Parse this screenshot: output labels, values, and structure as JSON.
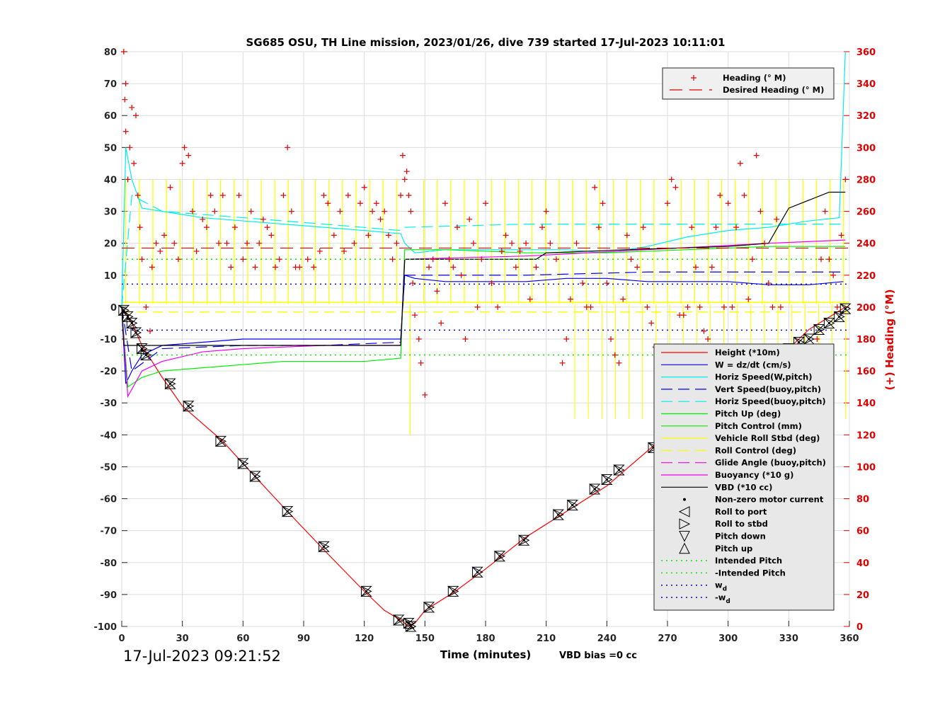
{
  "chart_data": {
    "type": "line",
    "title": "SG685 OSU, TH Line mission, 2023/01/26, dive 739 started 17-Jul-2023 10:11:01",
    "xlabel": "Time (minutes)",
    "ylabel_right": "(+) Heading (°M)",
    "xlim": [
      0,
      360
    ],
    "ylim": [
      -100,
      80
    ],
    "ylim_right": [
      0,
      360
    ],
    "x_ticks": [
      "0",
      "30",
      "60",
      "90",
      "120",
      "150",
      "180",
      "210",
      "240",
      "270",
      "300",
      "330",
      "360"
    ],
    "y_ticks": [
      "80",
      "70",
      "60",
      "50",
      "40",
      "30",
      "20",
      "10",
      "0",
      "-10",
      "-20",
      "-30",
      "-40",
      "-50",
      "-60",
      "-70",
      "-80",
      "-90",
      "-100"
    ],
    "y2_ticks": [
      "360",
      "340",
      "320",
      "300",
      "280",
      "260",
      "240",
      "220",
      "200",
      "180",
      "160",
      "140",
      "120",
      "100",
      "80",
      "60",
      "40",
      "20",
      "0"
    ],
    "grid": true,
    "timestamp": "17-Jul-2023 09:21:52",
    "vbd_bias": "VBD bias =0 cc",
    "legend_top": [
      {
        "label": "Heading (° M)",
        "color": "#e00000",
        "style": "plus"
      },
      {
        "label": "Desired Heading (° M)",
        "color": "#e00000",
        "style": "dash"
      }
    ],
    "legend_main": [
      {
        "label": "Height (*10m)",
        "color": "#ff0000",
        "style": "solid"
      },
      {
        "label": "W = dz/dt (cm/s)",
        "color": "#0000ee",
        "style": "solid"
      },
      {
        "label": "Horiz Speed(W,pitch)",
        "color": "#00eeee",
        "style": "solid"
      },
      {
        "label": "Vert Speed(buoy,pitch)",
        "color": "#0000ee",
        "style": "dash"
      },
      {
        "label": "Horiz Speed(buoy,pitch)",
        "color": "#00eeee",
        "style": "dash"
      },
      {
        "label": "Pitch Up (deg)",
        "color": "#00ee00",
        "style": "solid"
      },
      {
        "label": "Pitch Control (mm)",
        "color": "#00ee00",
        "style": "solid"
      },
      {
        "label": "Vehicle Roll Stbd (deg)",
        "color": "#ffff00",
        "style": "solid"
      },
      {
        "label": "Roll Control (deg)",
        "color": "#ffff00",
        "style": "dash"
      },
      {
        "label": "Glide Angle (buoy,pitch)",
        "color": "#ee00ee",
        "style": "dash"
      },
      {
        "label": "Buoyancy (*10 g)",
        "color": "#ee00ee",
        "style": "solid"
      },
      {
        "label": "VBD (*10 cc)",
        "color": "#000000",
        "style": "solid"
      },
      {
        "label": "Non-zero motor current",
        "color": "#000000",
        "style": "dot"
      },
      {
        "label": "Roll to port",
        "color": "#000000",
        "style": "tri-left"
      },
      {
        "label": "Roll to stbd",
        "color": "#000000",
        "style": "tri-right"
      },
      {
        "label": "Pitch down",
        "color": "#000000",
        "style": "tri-down"
      },
      {
        "label": "Pitch up",
        "color": "#000000",
        "style": "tri-up"
      },
      {
        "label": "Intended Pitch",
        "color": "#00ee00",
        "style": "dotted"
      },
      {
        "label": "-Intended Pitch",
        "color": "#00ee00",
        "style": "dotted"
      },
      {
        "label": "w_d",
        "color": "#0000ee",
        "style": "dotted"
      },
      {
        "label": "-w_d",
        "color": "#0000ee",
        "style": "dotted"
      }
    ],
    "series": [
      {
        "name": "Height (*10m)",
        "x": [
          0,
          5,
          10,
          20,
          30,
          50,
          60,
          82,
          100,
          120,
          130,
          138,
          142,
          145,
          150,
          165,
          180,
          200,
          220,
          240,
          262,
          280,
          300,
          320,
          340,
          358
        ],
        "y": [
          0,
          -5,
          -12,
          -22,
          -31,
          -42,
          -49,
          -64,
          -76,
          -89,
          -95,
          -98,
          -100,
          -99,
          -95,
          -89,
          -82,
          -72,
          -64,
          -56,
          -44,
          -35,
          -26,
          -19,
          -7,
          0
        ]
      },
      {
        "name": "W = dz/dt (cm/s)",
        "x": [
          0,
          2,
          5,
          10,
          20,
          40,
          60,
          80,
          100,
          120,
          138,
          140,
          145,
          160,
          180,
          200,
          220,
          240,
          260,
          280,
          300,
          320,
          340,
          357
        ],
        "y": [
          0,
          -24,
          -20,
          -15,
          -12,
          -11,
          -10,
          -10,
          -10,
          -10,
          -10,
          10,
          9,
          8,
          8,
          8,
          9,
          9,
          8,
          8,
          8,
          7,
          7,
          8
        ]
      },
      {
        "name": "Horiz Speed(W,pitch)",
        "x": [
          0,
          2,
          5,
          10,
          20,
          40,
          60,
          80,
          100,
          120,
          138,
          140,
          145,
          160,
          180,
          200,
          220,
          240,
          260,
          280,
          300,
          320,
          340,
          355,
          358
        ],
        "y": [
          0,
          50,
          40,
          31,
          30,
          28,
          27,
          26,
          25,
          24,
          23,
          20,
          17,
          18,
          18,
          18,
          18,
          17,
          19,
          22,
          24,
          25,
          27,
          28,
          80
        ]
      },
      {
        "name": "Vert Speed(buoy,pitch)",
        "x": [
          0,
          5,
          20,
          60,
          100,
          138,
          140,
          200,
          260,
          320,
          358
        ],
        "y": [
          0,
          -20,
          -13,
          -12,
          -12,
          -11,
          10,
          10,
          11,
          11,
          11
        ]
      },
      {
        "name": "Horiz Speed(buoy,pitch)",
        "x": [
          0,
          5,
          20,
          60,
          100,
          138,
          140,
          200,
          260,
          320,
          358
        ],
        "y": [
          0,
          35,
          30,
          28,
          26,
          24,
          25,
          26,
          26,
          26,
          26
        ]
      },
      {
        "name": "Pitch Up (deg)",
        "x": [
          0,
          3,
          10,
          20,
          40,
          60,
          80,
          100,
          120,
          138,
          140,
          160,
          200,
          240,
          280,
          320,
          358
        ],
        "y": [
          0,
          -25,
          -22,
          -20,
          -19,
          -18,
          -17,
          -17,
          -17,
          -16,
          18,
          18,
          17,
          17,
          18,
          19,
          19
        ]
      },
      {
        "name": "Buoyancy (*10 g)",
        "x": [
          0,
          3,
          10,
          20,
          40,
          60,
          100,
          138,
          140,
          200,
          260,
          320,
          358
        ],
        "y": [
          0,
          -28,
          -20,
          -17,
          -14,
          -13,
          -12,
          -12,
          15,
          16,
          18,
          20,
          21
        ]
      },
      {
        "name": "VBD (*10 cc)",
        "x": [
          0,
          1,
          5,
          138,
          140,
          142,
          180,
          205,
          210,
          250,
          300,
          320,
          330,
          350,
          358
        ],
        "y": [
          0,
          -12,
          -12,
          -12,
          15,
          15,
          15,
          15,
          17,
          18,
          19,
          20,
          31,
          36,
          36
        ]
      },
      {
        "name": "Intended Pitch",
        "x": [
          0,
          360
        ],
        "y": [
          15,
          15
        ]
      },
      {
        "name": "-Intended Pitch",
        "x": [
          0,
          360
        ],
        "y": [
          -15,
          -15
        ]
      },
      {
        "name": "w_d",
        "x": [
          0,
          360
        ],
        "y": [
          7.2,
          7.2
        ]
      },
      {
        "name": "-w_d",
        "x": [
          0,
          360
        ],
        "y": [
          -7.2,
          -7.2
        ]
      },
      {
        "name": "Desired Heading (° M)",
        "x": [
          0,
          140,
          145,
          360
        ],
        "y_right": [
          237,
          237,
          237,
          237
        ]
      }
    ],
    "motor_markers": [
      {
        "t": 1,
        "z": -1
      },
      {
        "t": 3,
        "z": -3
      },
      {
        "t": 5,
        "z": -5
      },
      {
        "t": 7,
        "z": -8
      },
      {
        "t": 10,
        "z": -13
      },
      {
        "t": 12,
        "z": -15
      },
      {
        "t": 24,
        "z": -24
      },
      {
        "t": 33,
        "z": -31
      },
      {
        "t": 49,
        "z": -42
      },
      {
        "t": 60,
        "z": -49
      },
      {
        "t": 66,
        "z": -53
      },
      {
        "t": 82,
        "z": -64
      },
      {
        "t": 100,
        "z": -75
      },
      {
        "t": 121,
        "z": -89
      },
      {
        "t": 137,
        "z": -98
      },
      {
        "t": 142,
        "z": -99
      },
      {
        "t": 143,
        "z": -100
      },
      {
        "t": 152,
        "z": -94
      },
      {
        "t": 164,
        "z": -89
      },
      {
        "t": 176,
        "z": -83
      },
      {
        "t": 187,
        "z": -78
      },
      {
        "t": 199,
        "z": -73
      },
      {
        "t": 216,
        "z": -65
      },
      {
        "t": 223,
        "z": -62
      },
      {
        "t": 234,
        "z": -57
      },
      {
        "t": 240,
        "z": -54
      },
      {
        "t": 246,
        "z": -51
      },
      {
        "t": 263,
        "z": -44
      },
      {
        "t": 268,
        "z": -40
      },
      {
        "t": 276,
        "z": -38
      },
      {
        "t": 282,
        "z": -35
      },
      {
        "t": 292,
        "z": -28
      },
      {
        "t": 300,
        "z": -24
      },
      {
        "t": 308,
        "z": -20
      },
      {
        "t": 315,
        "z": -18
      },
      {
        "t": 324,
        "z": -16
      },
      {
        "t": 330,
        "z": -13
      },
      {
        "t": 335,
        "z": -11
      },
      {
        "t": 340,
        "z": -10
      },
      {
        "t": 345,
        "z": -7
      },
      {
        "t": 350,
        "z": -5
      },
      {
        "t": 355,
        "z": -3
      },
      {
        "t": 358,
        "z": -0.5
      }
    ],
    "heading_points_deg": [
      [
        1,
        360
      ],
      [
        1.5,
        330
      ],
      [
        2,
        340
      ],
      [
        2,
        310
      ],
      [
        3,
        280
      ],
      [
        4,
        300
      ],
      [
        5,
        325
      ],
      [
        6,
        290
      ],
      [
        7,
        320
      ],
      [
        8,
        270
      ],
      [
        9,
        250
      ],
      [
        10,
        230
      ],
      [
        12,
        200
      ],
      [
        14,
        185
      ],
      [
        15,
        225
      ],
      [
        17,
        240
      ],
      [
        19,
        235
      ],
      [
        21,
        245
      ],
      [
        24,
        275
      ],
      [
        26,
        240
      ],
      [
        28,
        230
      ],
      [
        30,
        290
      ],
      [
        31,
        300
      ],
      [
        33,
        295
      ],
      [
        35,
        260
      ],
      [
        37,
        235
      ],
      [
        40,
        255
      ],
      [
        42,
        250
      ],
      [
        44,
        270
      ],
      [
        46,
        260
      ],
      [
        48,
        240
      ],
      [
        50,
        270
      ],
      [
        52,
        240
      ],
      [
        54,
        225
      ],
      [
        56,
        250
      ],
      [
        58,
        270
      ],
      [
        60,
        230
      ],
      [
        62,
        240
      ],
      [
        64,
        260
      ],
      [
        66,
        225
      ],
      [
        68,
        240
      ],
      [
        70,
        255
      ],
      [
        72,
        250
      ],
      [
        74,
        245
      ],
      [
        76,
        225
      ],
      [
        78,
        230
      ],
      [
        80,
        270
      ],
      [
        82,
        300
      ],
      [
        84,
        260
      ],
      [
        86,
        225
      ],
      [
        88,
        225
      ],
      [
        92,
        230
      ],
      [
        95,
        225
      ],
      [
        98,
        235
      ],
      [
        100,
        270
      ],
      [
        102,
        265
      ],
      [
        105,
        245
      ],
      [
        108,
        260
      ],
      [
        110,
        235
      ],
      [
        112,
        270
      ],
      [
        115,
        240
      ],
      [
        118,
        265
      ],
      [
        120,
        275
      ],
      [
        122,
        245
      ],
      [
        124,
        260
      ],
      [
        126,
        265
      ],
      [
        128,
        255
      ],
      [
        130,
        260
      ],
      [
        132,
        245
      ],
      [
        134,
        230
      ],
      [
        136,
        240
      ],
      [
        138,
        270
      ],
      [
        139,
        295
      ],
      [
        140,
        280
      ],
      [
        141,
        285
      ],
      [
        142,
        270
      ],
      [
        143,
        260
      ],
      [
        144,
        215
      ],
      [
        145,
        195
      ],
      [
        147,
        180
      ],
      [
        148,
        165
      ],
      [
        150,
        145
      ],
      [
        152,
        225
      ],
      [
        154,
        230
      ],
      [
        156,
        210
      ],
      [
        158,
        190
      ],
      [
        160,
        265
      ],
      [
        162,
        230
      ],
      [
        164,
        225
      ],
      [
        166,
        250
      ],
      [
        168,
        220
      ],
      [
        170,
        180
      ],
      [
        172,
        255
      ],
      [
        174,
        240
      ],
      [
        176,
        200
      ],
      [
        178,
        230
      ],
      [
        180,
        265
      ],
      [
        183,
        215
      ],
      [
        186,
        200
      ],
      [
        188,
        235
      ],
      [
        190,
        245
      ],
      [
        193,
        240
      ],
      [
        195,
        225
      ],
      [
        197,
        235
      ],
      [
        200,
        240
      ],
      [
        202,
        205
      ],
      [
        205,
        225
      ],
      [
        208,
        250
      ],
      [
        210,
        260
      ],
      [
        212,
        240
      ],
      [
        215,
        230
      ],
      [
        218,
        165
      ],
      [
        220,
        180
      ],
      [
        222,
        205
      ],
      [
        225,
        240
      ],
      [
        228,
        215
      ],
      [
        230,
        200
      ],
      [
        232,
        200
      ],
      [
        234,
        275
      ],
      [
        236,
        250
      ],
      [
        238,
        265
      ],
      [
        240,
        215
      ],
      [
        242,
        180
      ],
      [
        244,
        170
      ],
      [
        246,
        165
      ],
      [
        248,
        205
      ],
      [
        250,
        245
      ],
      [
        252,
        230
      ],
      [
        255,
        225
      ],
      [
        258,
        250
      ],
      [
        260,
        200
      ],
      [
        262,
        190
      ],
      [
        264,
        175
      ],
      [
        266,
        150
      ],
      [
        268,
        145
      ],
      [
        270,
        265
      ],
      [
        272,
        280
      ],
      [
        274,
        275
      ],
      [
        276,
        195
      ],
      [
        278,
        195
      ],
      [
        280,
        200
      ],
      [
        282,
        250
      ],
      [
        284,
        225
      ],
      [
        286,
        200
      ],
      [
        288,
        185
      ],
      [
        290,
        180
      ],
      [
        292,
        225
      ],
      [
        294,
        250
      ],
      [
        296,
        270
      ],
      [
        298,
        200
      ],
      [
        300,
        265
      ],
      [
        302,
        200
      ],
      [
        304,
        250
      ],
      [
        306,
        290
      ],
      [
        308,
        270
      ],
      [
        310,
        205
      ],
      [
        312,
        230
      ],
      [
        314,
        295
      ],
      [
        316,
        260
      ],
      [
        318,
        240
      ],
      [
        320,
        215
      ],
      [
        322,
        200
      ],
      [
        324,
        255
      ],
      [
        326,
        200
      ],
      [
        328,
        170
      ],
      [
        330,
        175
      ],
      [
        332,
        150
      ],
      [
        334,
        135
      ],
      [
        336,
        115
      ],
      [
        338,
        95
      ],
      [
        340,
        110
      ],
      [
        342,
        140
      ],
      [
        344,
        180
      ],
      [
        346,
        230
      ],
      [
        348,
        260
      ],
      [
        350,
        230
      ],
      [
        352,
        220
      ],
      [
        354,
        200
      ],
      [
        356,
        245
      ],
      [
        358,
        280
      ]
    ]
  }
}
